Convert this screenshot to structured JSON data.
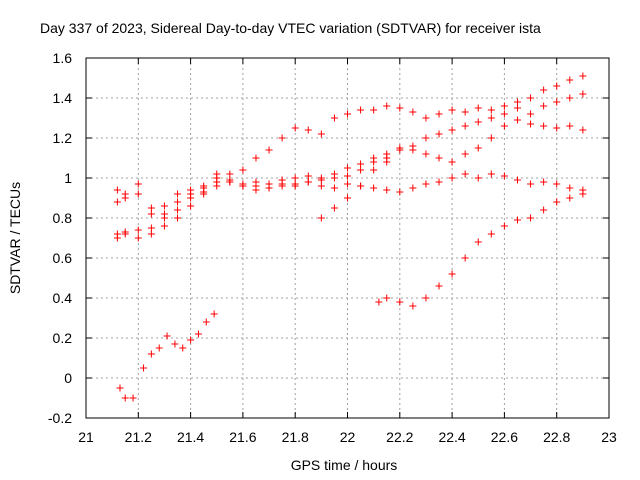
{
  "chart_data": {
    "type": "scatter",
    "title": "Day 337 of 2023, Sidereal Day-to-day VTEC variation (SDTVAR) for receiver ista",
    "xlabel": "GPS time / hours",
    "ylabel": "SDTVAR / TECUs",
    "xlim": [
      21,
      23
    ],
    "ylim": [
      -0.2,
      1.6
    ],
    "x_ticks": [
      "21",
      "21.2",
      "21.4",
      "21.6",
      "21.8",
      "22",
      "22.2",
      "22.4",
      "22.6",
      "22.8",
      "23"
    ],
    "y_ticks": [
      "-0.2",
      "0",
      "0.2",
      "0.4",
      "0.6",
      "0.8",
      "1",
      "1.2",
      "1.4",
      "1.6"
    ],
    "grid": true,
    "marker": "plus",
    "color": "#ff0000",
    "series": [
      {
        "x": [
          21.12,
          21.15,
          21.2,
          21.25,
          21.3,
          21.35,
          21.4,
          21.45,
          21.5,
          21.55,
          21.6,
          21.65,
          21.7,
          21.75,
          21.8,
          21.85,
          21.9,
          21.95,
          22.0,
          22.05,
          22.1,
          22.15,
          22.2,
          22.25,
          22.3,
          22.35,
          22.4,
          22.45,
          22.5,
          22.55,
          22.6,
          22.65,
          22.7,
          22.75,
          22.8,
          22.85,
          22.9
        ],
        "y": [
          0.88,
          0.9,
          0.92,
          0.82,
          0.86,
          0.92,
          0.94,
          0.96,
          0.98,
          1.02,
          1.04,
          1.1,
          1.14,
          1.2,
          1.25,
          1.24,
          1.22,
          1.3,
          1.32,
          1.34,
          1.34,
          1.36,
          1.35,
          1.33,
          1.3,
          1.32,
          1.34,
          1.33,
          1.35,
          1.34,
          1.36,
          1.38,
          1.27,
          1.26,
          1.25,
          1.26,
          1.24
        ]
      },
      {
        "x": [
          21.12,
          21.15,
          21.2,
          21.25,
          21.3,
          21.35,
          21.4,
          21.45,
          21.5,
          21.55,
          21.6,
          21.65,
          21.7,
          21.75,
          21.8,
          21.85,
          21.9,
          21.95,
          22.0,
          22.05,
          22.1,
          22.15,
          22.2,
          22.25,
          22.3,
          22.35,
          22.4,
          22.45,
          22.5,
          22.55,
          22.6,
          22.65,
          22.7,
          22.75,
          22.8,
          22.85,
          22.9
        ],
        "y": [
          0.72,
          0.73,
          0.7,
          0.75,
          0.8,
          0.88,
          0.92,
          0.95,
          1.0,
          0.98,
          0.96,
          0.98,
          0.97,
          0.99,
          1.0,
          1.01,
          0.99,
          1.0,
          1.01,
          1.04,
          1.08,
          1.1,
          1.14,
          1.16,
          1.2,
          1.22,
          1.24,
          1.26,
          1.28,
          1.3,
          1.32,
          1.35,
          1.4,
          1.44,
          1.46,
          1.49,
          1.51
        ]
      },
      {
        "x": [
          21.12,
          21.15,
          21.2,
          21.25,
          21.3,
          21.35,
          21.4,
          21.45,
          21.5,
          21.55,
          21.6,
          21.65,
          21.7,
          21.75,
          21.8,
          21.85,
          21.9,
          21.95,
          22.0,
          22.05,
          22.1,
          22.15,
          22.2,
          22.25,
          22.3,
          22.35,
          22.4,
          22.45,
          22.5,
          22.55,
          22.6,
          22.65,
          22.7,
          22.75,
          22.8,
          22.85,
          22.9
        ],
        "y": [
          0.94,
          0.92,
          0.97,
          0.85,
          0.82,
          0.84,
          0.9,
          0.93,
          1.02,
          0.99,
          0.96,
          0.94,
          0.95,
          0.97,
          0.96,
          0.98,
          1.0,
          1.02,
          1.05,
          1.07,
          1.1,
          1.12,
          1.15,
          1.14,
          1.12,
          1.1,
          1.08,
          1.12,
          1.15,
          1.2,
          1.26,
          1.29,
          1.32,
          1.36,
          1.38,
          1.4,
          1.42
        ]
      },
      {
        "x": [
          21.12,
          21.15,
          21.2,
          21.25,
          21.3,
          21.35,
          21.4,
          21.45,
          21.5,
          21.55,
          21.6,
          21.65,
          21.7,
          21.75,
          21.8,
          21.85,
          21.9,
          21.95,
          22.0,
          22.05,
          22.1,
          22.15,
          22.2,
          22.25,
          22.3,
          22.35,
          22.4,
          22.45,
          22.5,
          22.55,
          22.6,
          22.65,
          22.7,
          22.75,
          22.8,
          22.85,
          22.9
        ],
        "y": [
          0.7,
          0.72,
          0.74,
          0.72,
          0.76,
          0.8,
          0.86,
          0.92,
          0.96,
          0.98,
          0.97,
          0.96,
          0.95,
          0.96,
          0.97,
          0.98,
          0.96,
          0.95,
          0.97,
          0.96,
          0.95,
          0.94,
          0.93,
          0.95,
          0.97,
          0.98,
          1.0,
          1.02,
          1.0,
          1.02,
          1.01,
          0.99,
          0.97,
          0.98,
          0.97,
          0.95,
          0.94
        ]
      },
      {
        "x": [
          21.13,
          21.15,
          21.18,
          21.22,
          21.25,
          21.28,
          21.31,
          21.34,
          21.37,
          21.4,
          21.43,
          21.46,
          21.49
        ],
        "y": [
          -0.05,
          -0.1,
          -0.1,
          0.05,
          0.12,
          0.15,
          0.21,
          0.17,
          0.15,
          0.19,
          0.22,
          0.28,
          0.32
        ]
      },
      {
        "x": [
          21.9,
          21.95,
          22.0,
          22.05,
          22.1,
          22.15
        ],
        "y": [
          0.8,
          0.85,
          0.9,
          0.96,
          1.04,
          1.08
        ]
      },
      {
        "x": [
          22.12,
          22.15,
          22.2,
          22.25,
          22.3,
          22.35,
          22.4,
          22.45,
          22.5,
          22.55,
          22.6,
          22.65,
          22.7,
          22.75,
          22.8,
          22.85,
          22.9
        ],
        "y": [
          0.38,
          0.4,
          0.38,
          0.36,
          0.4,
          0.46,
          0.52,
          0.6,
          0.68,
          0.72,
          0.76,
          0.79,
          0.8,
          0.84,
          0.88,
          0.9,
          0.92
        ]
      }
    ]
  }
}
